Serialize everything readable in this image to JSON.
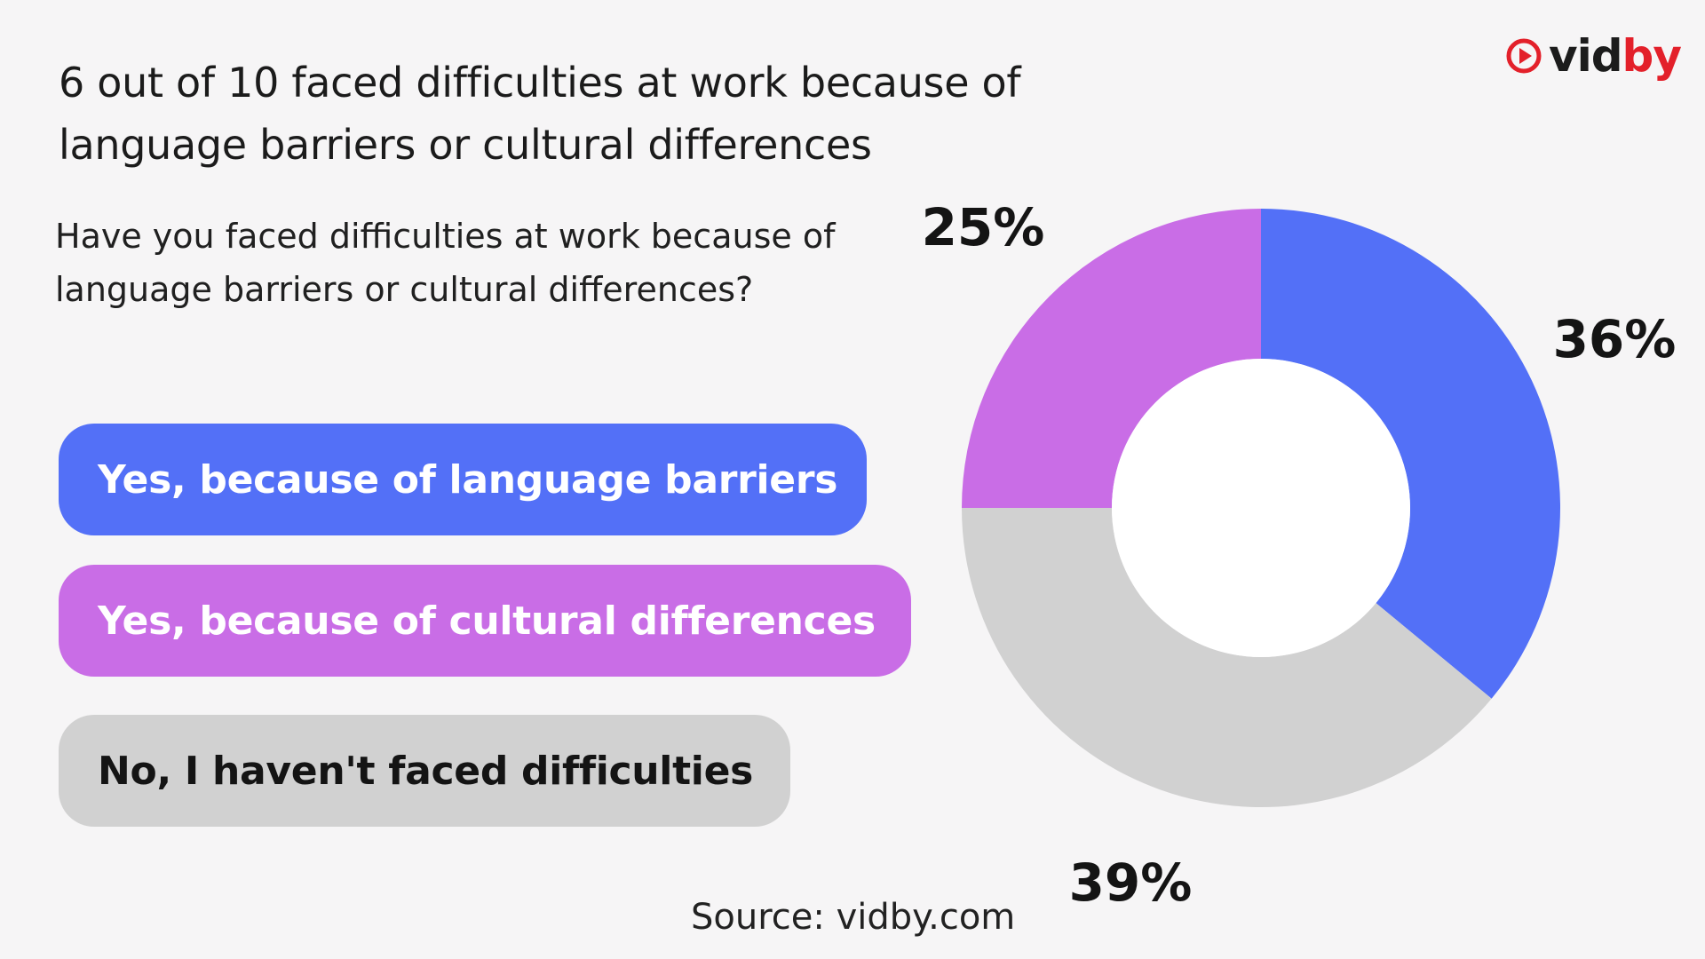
{
  "headline": "6 out of 10 faced difficulties at work because of language barriers or cultural differences",
  "question": "Have you faced difficulties at work because of language barriers or cultural differences?",
  "logo": {
    "part1": "vid",
    "part2": "by",
    "icon": "play-circle-icon"
  },
  "source": "Source: vidby.com",
  "colors": {
    "blue": "#5370f7",
    "purple": "#c96de6",
    "gray": "#d1d1d1",
    "brand_red": "#e3202a"
  },
  "chart_data": {
    "type": "pie",
    "donut": true,
    "categories": [
      "Yes, because of language barriers",
      "Yes, because of cultural differences",
      "No, I haven't faced difficulties"
    ],
    "values": [
      36,
      25,
      39
    ],
    "labels": [
      "36%",
      "25%",
      "39%"
    ],
    "unit": "%",
    "colors": [
      "#5370f7",
      "#c96de6",
      "#d1d1d1"
    ],
    "legend_placement": "left",
    "title": "6 out of 10 faced difficulties at work because of language barriers or cultural differences",
    "subtitle": "Have you faced difficulties at work because of language barriers or cultural differences?"
  }
}
